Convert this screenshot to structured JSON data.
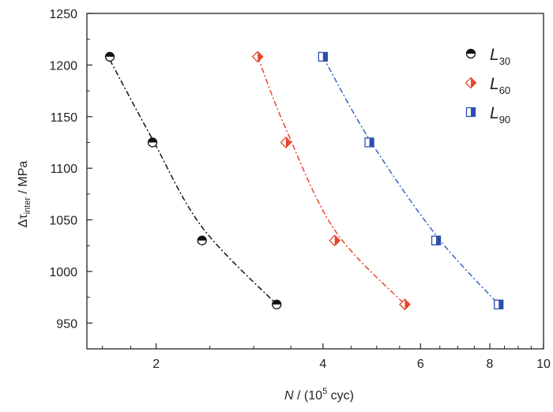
{
  "chart_data": {
    "type": "scatter",
    "title": "",
    "x_axis": {
      "label_var": "N",
      "label_unit_pre": " / (10",
      "label_unit_sup": "5",
      "label_unit_post": " cyc)",
      "scale": "log",
      "range": [
        1.5,
        10
      ],
      "major_ticks": [
        2,
        4,
        6,
        8,
        10
      ],
      "tick_labels": [
        "2",
        "4",
        "6",
        "8",
        "10"
      ],
      "minor_ticks": [
        1.6,
        1.8,
        2.5,
        3,
        3.5,
        4.5,
        5,
        5.5,
        6.5,
        7,
        7.5,
        8.5,
        9,
        9.5
      ]
    },
    "y_axis": {
      "label_pre": "Δτ",
      "label_sub": "inter",
      "label_post": " / MPa",
      "range": [
        925,
        1250
      ],
      "ticks": [
        950,
        1000,
        1050,
        1100,
        1150,
        1200,
        1250
      ],
      "tick_labels": [
        "950",
        "1000",
        "1050",
        "1100",
        "1150",
        "1200",
        "1250"
      ]
    },
    "legend": {
      "position": "top-right",
      "entries": [
        {
          "main": "L",
          "sub": "30"
        },
        {
          "main": "L",
          "sub": "60"
        },
        {
          "main": "L",
          "sub": "90"
        }
      ]
    },
    "series": [
      {
        "name": "L30",
        "marker": "circle-half",
        "color": "#111111",
        "line_color": "#111111",
        "points": [
          [
            1.65,
            1208
          ],
          [
            1.97,
            1125
          ],
          [
            2.42,
            1030
          ],
          [
            3.3,
            968
          ]
        ],
        "fit": [
          [
            1.65,
            1205
          ],
          [
            1.97,
            1128
          ],
          [
            2.42,
            1043
          ],
          [
            3.3,
            968
          ]
        ]
      },
      {
        "name": "L60",
        "marker": "diamond-half",
        "color": "#e8452c",
        "line_color": "#e8452c",
        "points": [
          [
            3.05,
            1208
          ],
          [
            3.43,
            1125
          ],
          [
            4.2,
            1030
          ],
          [
            5.62,
            968
          ]
        ],
        "fit": [
          [
            3.05,
            1208
          ],
          [
            3.43,
            1138
          ],
          [
            4.2,
            1040
          ],
          [
            5.62,
            968
          ]
        ]
      },
      {
        "name": "L90",
        "marker": "square-half",
        "color": "#2c4fae",
        "line_color": "#3a64c8",
        "points": [
          [
            4.0,
            1208
          ],
          [
            4.85,
            1125
          ],
          [
            6.4,
            1030
          ],
          [
            8.3,
            968
          ]
        ],
        "fit": [
          [
            4.0,
            1208
          ],
          [
            4.85,
            1128
          ],
          [
            6.4,
            1035
          ],
          [
            8.3,
            968
          ]
        ]
      }
    ]
  }
}
